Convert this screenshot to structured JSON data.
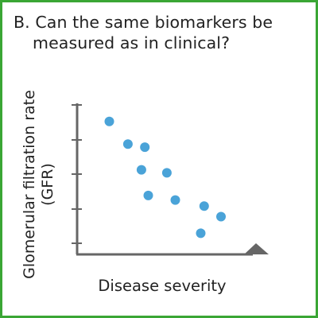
{
  "title": {
    "line1": "B. Can the same biomarkers be",
    "line2": "measured as in clinical?"
  },
  "colors": {
    "frame": "#3aa635",
    "axis": "#666666",
    "points": "#4aa3d8",
    "text": "#222222"
  },
  "chart_data": {
    "type": "scatter",
    "title": "B. Can the same biomarkers be measured as in clinical?",
    "xlabel": "Disease severity",
    "ylabel_lines": [
      "Glomerular filtration rate",
      "(GFR)"
    ],
    "x_ticks_shown": false,
    "y_tick_labels_shown": false,
    "xlim": [
      0,
      10
    ],
    "ylim": [
      0,
      10
    ],
    "grid": false,
    "legend": "none",
    "points": [
      {
        "x": 1.9,
        "y": 8.8
      },
      {
        "x": 3.0,
        "y": 7.3
      },
      {
        "x": 4.0,
        "y": 7.1
      },
      {
        "x": 3.8,
        "y": 5.6
      },
      {
        "x": 5.3,
        "y": 5.4
      },
      {
        "x": 4.2,
        "y": 3.9
      },
      {
        "x": 5.8,
        "y": 3.6
      },
      {
        "x": 7.5,
        "y": 3.2
      },
      {
        "x": 8.5,
        "y": 2.5
      },
      {
        "x": 7.3,
        "y": 1.4
      }
    ]
  }
}
